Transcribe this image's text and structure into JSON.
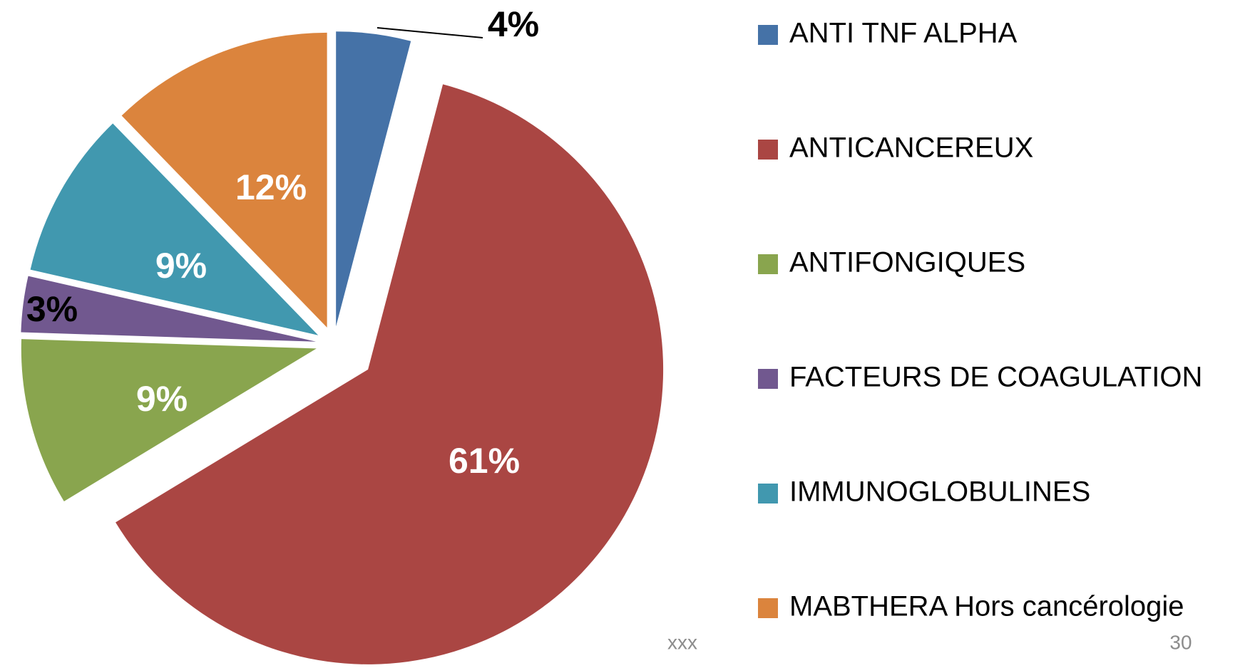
{
  "chart_data": {
    "type": "pie",
    "categories": [
      "ANTI TNF ALPHA",
      "ANTICANCEREUX",
      "ANTIFONGIQUES",
      "FACTEURS DE COAGULATION",
      "IMMUNOGLOBULINES",
      "MABTHERA Hors cancérologie"
    ],
    "values": [
      4,
      61,
      9,
      3,
      9,
      12
    ],
    "value_labels": [
      "4%",
      "61%",
      "9%",
      "3%",
      "9%",
      "12%"
    ],
    "colors": [
      "#4572a7",
      "#aa4643",
      "#89a54e",
      "#71588f",
      "#4198af",
      "#db843d"
    ],
    "legend": "right"
  },
  "footer": {
    "left": "xxx",
    "page_number": "30"
  }
}
